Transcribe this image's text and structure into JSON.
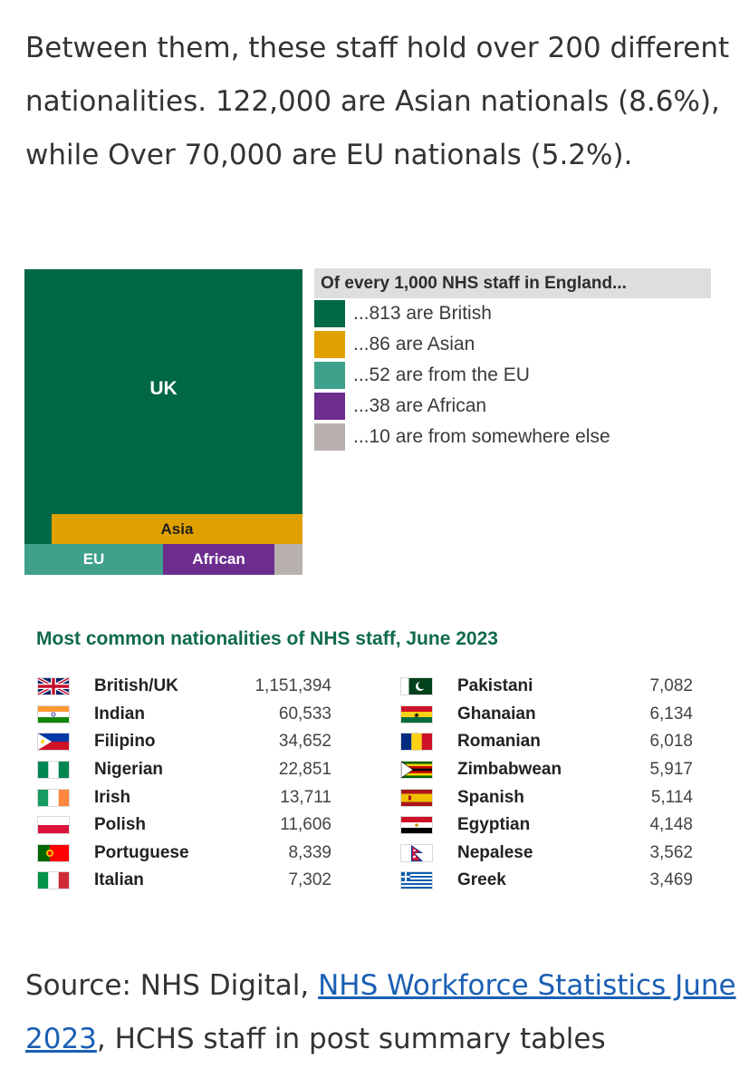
{
  "intro_text": "Between them, these staff hold over 200 different nationalities. 122,000 are Asian nationals (8.6%), while Over 70,000 are EU nationals (5.2%).",
  "treemap": {
    "uk_label": "UK",
    "asia_label": "Asia",
    "eu_label": "EU",
    "african_label": "African",
    "colors": {
      "uk": "#006747",
      "asia": "#e0a100",
      "eu": "#3fa08c",
      "african": "#6d2d8e",
      "other": "#b8b0ae"
    }
  },
  "legend": {
    "heading": "Of every 1,000 NHS staff in England...",
    "items": [
      {
        "text": "...813 are British",
        "color": "#006747"
      },
      {
        "text": "...86 are Asian",
        "color": "#e0a100"
      },
      {
        "text": "...52 are from the EU",
        "color": "#3fa08c"
      },
      {
        "text": "...38 are African",
        "color": "#6d2d8e"
      },
      {
        "text": "...10 are from somewhere else",
        "color": "#b8b0ae"
      }
    ]
  },
  "table": {
    "title": "Most common nationalities of NHS staff, June 2023",
    "left": [
      {
        "name": "British/UK",
        "count": "1,151,394",
        "flag": "uk-flag-icon"
      },
      {
        "name": "Indian",
        "count": "60,533",
        "flag": "india-flag-icon"
      },
      {
        "name": "Filipino",
        "count": "34,652",
        "flag": "philippines-flag-icon"
      },
      {
        "name": "Nigerian",
        "count": "22,851",
        "flag": "nigeria-flag-icon"
      },
      {
        "name": "Irish",
        "count": "13,711",
        "flag": "ireland-flag-icon"
      },
      {
        "name": "Polish",
        "count": "11,606",
        "flag": "poland-flag-icon"
      },
      {
        "name": "Portuguese",
        "count": "8,339",
        "flag": "portugal-flag-icon"
      },
      {
        "name": "Italian",
        "count": "7,302",
        "flag": "italy-flag-icon"
      }
    ],
    "right": [
      {
        "name": "Pakistani",
        "count": "7,082",
        "flag": "pakistan-flag-icon"
      },
      {
        "name": "Ghanaian",
        "count": "6,134",
        "flag": "ghana-flag-icon"
      },
      {
        "name": "Romanian",
        "count": "6,018",
        "flag": "romania-flag-icon"
      },
      {
        "name": "Zimbabwean",
        "count": "5,917",
        "flag": "zimbabwe-flag-icon"
      },
      {
        "name": "Spanish",
        "count": "5,114",
        "flag": "spain-flag-icon"
      },
      {
        "name": "Egyptian",
        "count": "4,148",
        "flag": "egypt-flag-icon"
      },
      {
        "name": "Nepalese",
        "count": "3,562",
        "flag": "nepal-flag-icon"
      },
      {
        "name": "Greek",
        "count": "3,469",
        "flag": "greece-flag-icon"
      }
    ]
  },
  "source": {
    "prefix": "Source: NHS Digital,  ",
    "link_text": "NHS Workforce Statistics June 2023",
    "suffix": ", HCHS staff in post summary tables"
  }
}
